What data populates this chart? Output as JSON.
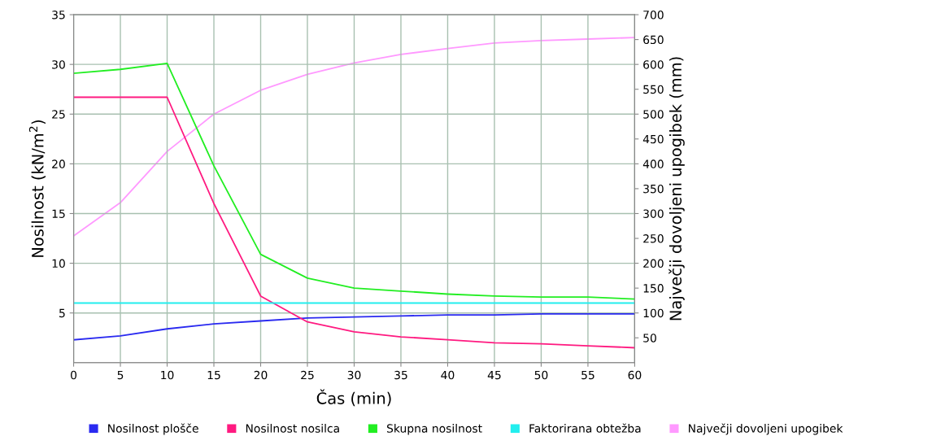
{
  "chart_data": {
    "type": "line",
    "xlabel": "Čas (min)",
    "ylabel": "Nosilnost (kN/m$^{2}$)",
    "y2label": "Največji dovoljeni upogibek (mm)",
    "x": [
      0,
      5,
      10,
      15,
      20,
      25,
      30,
      35,
      40,
      45,
      50,
      55,
      60
    ],
    "series": [
      {
        "name": "Nosilnost plošče",
        "color": "#2a2af0",
        "values": [
          2.3,
          2.7,
          3.4,
          3.9,
          4.2,
          4.5,
          4.6,
          4.7,
          4.8,
          4.8,
          4.9,
          4.9,
          4.9
        ]
      },
      {
        "name": "Nosilnost nosilca",
        "color": "#ff1a80",
        "values": [
          26.7,
          26.7,
          26.7,
          16,
          6.7,
          4.1,
          3.1,
          2.6,
          2.3,
          2.0,
          1.9,
          1.7,
          1.5
        ]
      },
      {
        "name": "Skupna nosilnost",
        "color": "#22ee22",
        "values": [
          29.1,
          29.5,
          30.1,
          19.8,
          10.9,
          8.5,
          7.5,
          7.2,
          6.9,
          6.7,
          6.6,
          6.6,
          6.4
        ]
      },
      {
        "name": "Faktorirana obtežba",
        "color": "#22eeee",
        "values": [
          6,
          6,
          6,
          6,
          6,
          6,
          6,
          6,
          6,
          6,
          6,
          6,
          6
        ]
      },
      {
        "name": "Največji dovoljeni upogibek",
        "color": "#ff99ff",
        "axis": "y2",
        "values": [
          255,
          322,
          425,
          500,
          548,
          580,
          603,
          620,
          632,
          643,
          648,
          651,
          654
        ]
      }
    ],
    "xlim": [
      0,
      60
    ],
    "xticks": [
      0,
      5,
      10,
      15,
      20,
      25,
      30,
      35,
      40,
      45,
      50,
      55,
      60
    ],
    "ylim": [
      0,
      35
    ],
    "yticks": [
      5,
      10,
      15,
      20,
      25,
      30,
      35
    ],
    "y2lim": [
      0,
      700
    ],
    "y2ticks": [
      50,
      100,
      150,
      200,
      250,
      300,
      350,
      400,
      450,
      500,
      550,
      600,
      650,
      700
    ],
    "grid": true,
    "legend": "bottom",
    "marker": "none",
    "line_style": "solid"
  }
}
